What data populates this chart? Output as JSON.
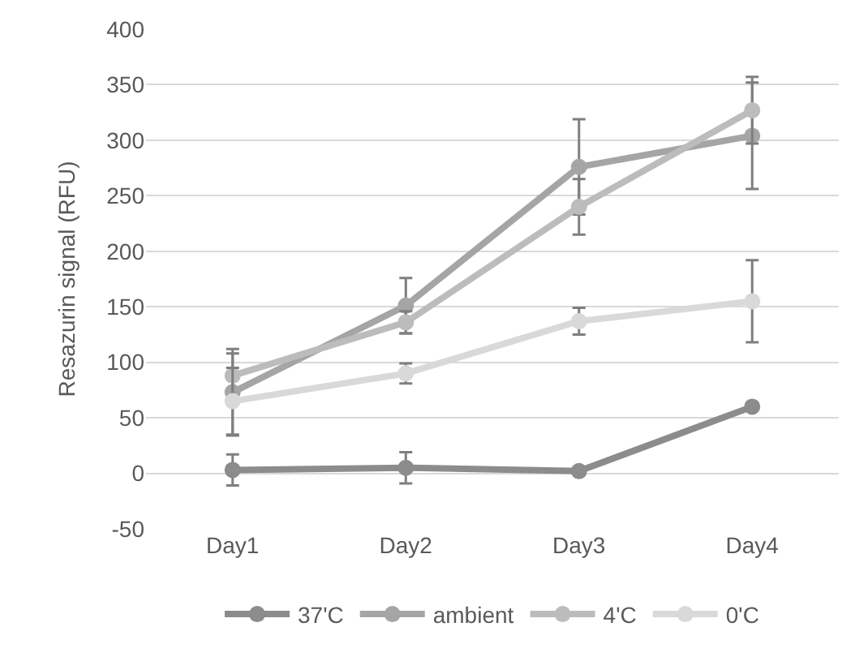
{
  "chart_data": {
    "type": "line",
    "ylabel": "Resazurin signal (RFU)",
    "categories": [
      "Day1",
      "Day2",
      "Day3",
      "Day4"
    ],
    "series": [
      {
        "name": "37'C",
        "color": "#8c8c8c",
        "values": [
          3,
          5,
          2,
          60
        ],
        "errors": [
          14,
          14,
          3,
          3
        ]
      },
      {
        "name": "ambient",
        "color": "#a5a5a5",
        "values": [
          73,
          151,
          276,
          304
        ],
        "errors": [
          39,
          25,
          43,
          48
        ]
      },
      {
        "name": "4'C",
        "color": "#bcbcbc",
        "values": [
          88,
          136,
          240,
          327
        ],
        "errors": [
          20,
          10,
          25,
          30
        ]
      },
      {
        "name": "0'C",
        "color": "#d9d9d9",
        "values": [
          65,
          90,
          137,
          155
        ],
        "errors": [
          30,
          9,
          12,
          37
        ]
      }
    ],
    "ylim": [
      -50,
      400
    ],
    "yticks": [
      -50,
      0,
      50,
      100,
      150,
      200,
      250,
      300,
      350,
      400
    ],
    "grid": "y",
    "legend": "bottom",
    "marker": "circle",
    "line_style": "solid"
  }
}
